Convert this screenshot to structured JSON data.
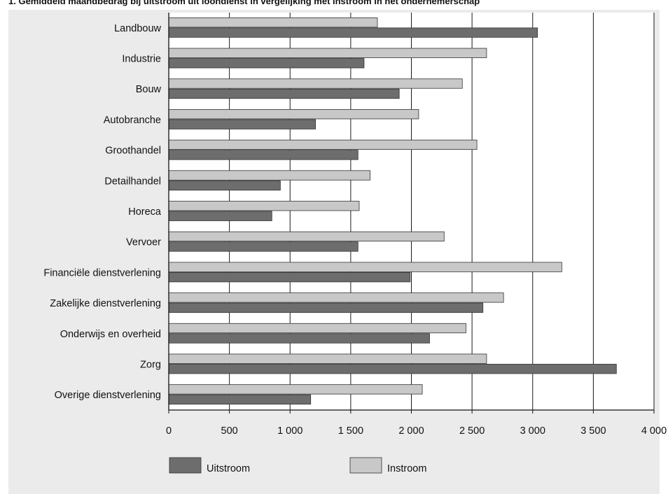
{
  "chart_data": {
    "type": "bar",
    "orientation": "horizontal",
    "title": "1. Gemiddeld maandbedrag bij uitstroom uit loondienst in vergelijking met instroom in het ondernemerschap",
    "xlabel": "",
    "ylabel": "",
    "xlim": [
      0,
      4000
    ],
    "x_ticks": [
      0,
      500,
      1000,
      1500,
      2000,
      2500,
      3000,
      3500,
      4000
    ],
    "x_tick_labels": [
      "0",
      "500",
      "1 000",
      "1 500",
      "2 000",
      "2 500",
      "3 000",
      "3 500",
      "4 000"
    ],
    "grid": "vertical",
    "legend_position": "bottom-left",
    "categories": [
      "Landbouw",
      "Industrie",
      "Bouw",
      "Autobranche",
      "Groothandel",
      "Detailhandel",
      "Horeca",
      "Vervoer",
      "Financiële dienstverlening",
      "Zakelijke dienstverlening",
      "Onderwijs en overheid",
      "Zorg",
      "Overige dienstverlening"
    ],
    "series": [
      {
        "name": "Instroom",
        "color": "#c8c8c8",
        "values": [
          1720,
          2620,
          2420,
          2060,
          2540,
          1660,
          1570,
          2270,
          3240,
          2760,
          2450,
          2620,
          2090
        ]
      },
      {
        "name": "Uitstroom",
        "color": "#6d6d6d",
        "values": [
          3040,
          1610,
          1900,
          1210,
          1560,
          920,
          850,
          1560,
          1990,
          2590,
          2150,
          3690,
          1170
        ]
      }
    ]
  }
}
